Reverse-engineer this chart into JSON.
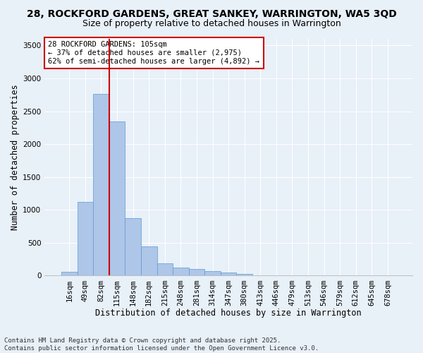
{
  "title1": "28, ROCKFORD GARDENS, GREAT SANKEY, WARRINGTON, WA5 3QD",
  "title2": "Size of property relative to detached houses in Warrington",
  "xlabel": "Distribution of detached houses by size in Warrington",
  "ylabel": "Number of detached properties",
  "categories": [
    "16sqm",
    "49sqm",
    "82sqm",
    "115sqm",
    "148sqm",
    "182sqm",
    "215sqm",
    "248sqm",
    "281sqm",
    "314sqm",
    "347sqm",
    "380sqm",
    "413sqm",
    "446sqm",
    "479sqm",
    "513sqm",
    "546sqm",
    "579sqm",
    "612sqm",
    "645sqm",
    "678sqm"
  ],
  "values": [
    55,
    1120,
    2760,
    2340,
    870,
    440,
    190,
    120,
    105,
    70,
    50,
    30,
    10,
    5,
    2,
    1,
    0,
    0,
    0,
    0,
    0
  ],
  "bar_color": "#aec6e8",
  "bar_edge_color": "#5b9bd5",
  "vline_x_index": 2,
  "vline_color": "#cc0000",
  "annotation_text": "28 ROCKFORD GARDENS: 105sqm\n← 37% of detached houses are smaller (2,975)\n62% of semi-detached houses are larger (4,892) →",
  "annotation_box_color": "#ffffff",
  "annotation_box_edge": "#cc0000",
  "ylim": [
    0,
    3600
  ],
  "yticks": [
    0,
    500,
    1000,
    1500,
    2000,
    2500,
    3000,
    3500
  ],
  "background_color": "#e8f0f8",
  "grid_color": "#ffffff",
  "footer1": "Contains HM Land Registry data © Crown copyright and database right 2025.",
  "footer2": "Contains public sector information licensed under the Open Government Licence v3.0.",
  "title1_fontsize": 10,
  "title2_fontsize": 9,
  "xlabel_fontsize": 8.5,
  "ylabel_fontsize": 8.5,
  "tick_fontsize": 7.5,
  "annotation_fontsize": 7.5,
  "footer_fontsize": 6.5
}
